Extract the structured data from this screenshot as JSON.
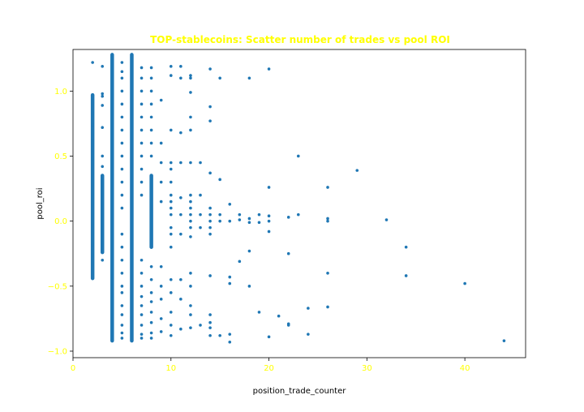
{
  "chart_data": {
    "type": "scatter",
    "title": "TOP-stablecoins: Scatter number of trades vs pool ROI",
    "xlabel": "position_trade_counter",
    "ylabel": "pool_roi",
    "xlim": [
      0,
      46.2
    ],
    "ylim": [
      -1.05,
      1.32
    ],
    "x_ticks": [
      0,
      10,
      20,
      30,
      40
    ],
    "y_ticks": [
      -1.0,
      -0.5,
      0.0,
      0.5,
      1.0
    ],
    "x_tick_labels": [
      "0",
      "10",
      "20",
      "30",
      "40"
    ],
    "y_tick_labels": [
      "−1.0",
      "−0.5",
      "0.0",
      "0.5",
      "1.0"
    ],
    "grid": false,
    "colors": {
      "points": "#1f77b4",
      "title": "#ffff00",
      "ticks": "#ffff00",
      "labels": "#000000"
    },
    "dense_bands": [
      {
        "x": 2,
        "from": -0.44,
        "to": 0.97
      },
      {
        "x": 4,
        "from": -0.92,
        "to": 1.28
      },
      {
        "x": 6,
        "from": -0.92,
        "to": 1.28
      },
      {
        "x": 3,
        "from": -0.24,
        "to": 0.35
      },
      {
        "x": 8,
        "from": -0.2,
        "to": 0.35
      }
    ],
    "points": [
      [
        2,
        1.22
      ],
      [
        2,
        0.83
      ],
      [
        2,
        0.74
      ],
      [
        2,
        0.62
      ],
      [
        2,
        0.55
      ],
      [
        2,
        0.48
      ],
      [
        2,
        -0.18
      ],
      [
        2,
        -0.26
      ],
      [
        3,
        1.19
      ],
      [
        3,
        0.98
      ],
      [
        3,
        0.96
      ],
      [
        3,
        0.89
      ],
      [
        3,
        0.72
      ],
      [
        3,
        0.5
      ],
      [
        3,
        0.42
      ],
      [
        3,
        -0.3
      ],
      [
        5,
        1.22
      ],
      [
        5,
        1.15
      ],
      [
        5,
        1.1
      ],
      [
        5,
        1.0
      ],
      [
        5,
        0.9
      ],
      [
        5,
        0.8
      ],
      [
        5,
        0.7
      ],
      [
        5,
        0.6
      ],
      [
        5,
        0.5
      ],
      [
        5,
        0.4
      ],
      [
        5,
        0.3
      ],
      [
        5,
        0.2
      ],
      [
        5,
        0.1
      ],
      [
        5,
        -0.1
      ],
      [
        5,
        -0.2
      ],
      [
        5,
        -0.3
      ],
      [
        5,
        -0.4
      ],
      [
        5,
        -0.5
      ],
      [
        5,
        -0.55
      ],
      [
        5,
        -0.65
      ],
      [
        5,
        -0.72
      ],
      [
        5,
        -0.8
      ],
      [
        5,
        -0.86
      ],
      [
        5,
        -0.9
      ],
      [
        7,
        1.18
      ],
      [
        7,
        1.1
      ],
      [
        7,
        1.0
      ],
      [
        7,
        0.9
      ],
      [
        7,
        0.8
      ],
      [
        7,
        0.7
      ],
      [
        7,
        0.6
      ],
      [
        7,
        0.5
      ],
      [
        7,
        0.4
      ],
      [
        7,
        0.3
      ],
      [
        7,
        0.2
      ],
      [
        7,
        -0.3
      ],
      [
        7,
        -0.4
      ],
      [
        7,
        -0.5
      ],
      [
        7,
        -0.58
      ],
      [
        7,
        -0.65
      ],
      [
        7,
        -0.72
      ],
      [
        7,
        -0.8
      ],
      [
        7,
        -0.87
      ],
      [
        7,
        -0.9
      ],
      [
        8,
        1.18
      ],
      [
        8,
        1.1
      ],
      [
        8,
        1.0
      ],
      [
        8,
        0.9
      ],
      [
        8,
        0.8
      ],
      [
        8,
        0.7
      ],
      [
        8,
        0.6
      ],
      [
        8,
        0.5
      ],
      [
        8,
        -0.35
      ],
      [
        8,
        -0.45
      ],
      [
        8,
        -0.55
      ],
      [
        8,
        -0.62
      ],
      [
        8,
        -0.7
      ],
      [
        8,
        -0.78
      ],
      [
        8,
        -0.86
      ],
      [
        8,
        -0.9
      ],
      [
        9,
        0.93
      ],
      [
        9,
        0.6
      ],
      [
        9,
        0.45
      ],
      [
        9,
        0.3
      ],
      [
        9,
        0.15
      ],
      [
        9,
        -0.35
      ],
      [
        9,
        -0.5
      ],
      [
        9,
        -0.6
      ],
      [
        9,
        -0.75
      ],
      [
        9,
        -0.85
      ],
      [
        10,
        1.19
      ],
      [
        10,
        1.12
      ],
      [
        10,
        0.7
      ],
      [
        10,
        0.45
      ],
      [
        10,
        0.4
      ],
      [
        10,
        0.3
      ],
      [
        10,
        0.2
      ],
      [
        10,
        0.15
      ],
      [
        10,
        0.1
      ],
      [
        10,
        0.05
      ],
      [
        10,
        -0.05
      ],
      [
        10,
        -0.1
      ],
      [
        10,
        -0.2
      ],
      [
        10,
        -0.45
      ],
      [
        10,
        -0.55
      ],
      [
        10,
        -0.7
      ],
      [
        10,
        -0.8
      ],
      [
        10,
        -0.88
      ],
      [
        11,
        1.19
      ],
      [
        11,
        1.1
      ],
      [
        11,
        0.68
      ],
      [
        11,
        0.45
      ],
      [
        11,
        0.18
      ],
      [
        11,
        0.05
      ],
      [
        11,
        -0.1
      ],
      [
        11,
        -0.45
      ],
      [
        11,
        -0.6
      ],
      [
        11,
        -0.83
      ],
      [
        12,
        1.12
      ],
      [
        12,
        1.1
      ],
      [
        12,
        0.99
      ],
      [
        12,
        0.8
      ],
      [
        12,
        0.7
      ],
      [
        12,
        0.45
      ],
      [
        12,
        0.2
      ],
      [
        12,
        0.15
      ],
      [
        12,
        0.1
      ],
      [
        12,
        0.05
      ],
      [
        12,
        0.0
      ],
      [
        12,
        -0.05
      ],
      [
        12,
        -0.12
      ],
      [
        12,
        -0.4
      ],
      [
        12,
        -0.5
      ],
      [
        12,
        -0.65
      ],
      [
        12,
        -0.72
      ],
      [
        12,
        -0.82
      ],
      [
        13,
        0.45
      ],
      [
        13,
        0.2
      ],
      [
        13,
        0.05
      ],
      [
        13,
        -0.05
      ],
      [
        13,
        -0.8
      ],
      [
        14,
        1.17
      ],
      [
        14,
        0.88
      ],
      [
        14,
        0.77
      ],
      [
        14,
        0.37
      ],
      [
        14,
        0.1
      ],
      [
        14,
        0.05
      ],
      [
        14,
        0.0
      ],
      [
        14,
        -0.05
      ],
      [
        14,
        -0.1
      ],
      [
        14,
        -0.42
      ],
      [
        14,
        -0.72
      ],
      [
        14,
        -0.78
      ],
      [
        14,
        -0.82
      ],
      [
        14,
        -0.88
      ],
      [
        15,
        1.1
      ],
      [
        15,
        0.32
      ],
      [
        15,
        0.05
      ],
      [
        15,
        0.0
      ],
      [
        15,
        -0.88
      ],
      [
        16,
        0.13
      ],
      [
        16,
        0.0
      ],
      [
        16,
        -0.43
      ],
      [
        16,
        -0.48
      ],
      [
        16,
        -0.87
      ],
      [
        16,
        -0.93
      ],
      [
        17,
        0.05
      ],
      [
        17,
        0.01
      ],
      [
        17,
        -0.31
      ],
      [
        18,
        1.1
      ],
      [
        18,
        0.02
      ],
      [
        18,
        -0.01
      ],
      [
        18,
        -0.23
      ],
      [
        18,
        -0.5
      ],
      [
        19,
        0.05
      ],
      [
        19,
        -0.01
      ],
      [
        19,
        -0.7
      ],
      [
        20,
        1.17
      ],
      [
        20,
        0.26
      ],
      [
        20,
        0.04
      ],
      [
        20,
        0.0
      ],
      [
        20,
        -0.08
      ],
      [
        20,
        -0.89
      ],
      [
        21,
        -0.73
      ],
      [
        22,
        0.03
      ],
      [
        22,
        -0.25
      ],
      [
        22,
        -0.8
      ],
      [
        22,
        -0.79
      ],
      [
        23,
        0.5
      ],
      [
        23,
        0.05
      ],
      [
        24,
        -0.67
      ],
      [
        24,
        -0.87
      ],
      [
        26,
        0.26
      ],
      [
        26,
        0.02
      ],
      [
        26,
        0.0
      ],
      [
        26,
        -0.4
      ],
      [
        26,
        -0.66
      ],
      [
        29,
        0.39
      ],
      [
        32,
        0.01
      ],
      [
        34,
        -0.2
      ],
      [
        34,
        -0.42
      ],
      [
        40,
        -0.48
      ],
      [
        44,
        -0.92
      ]
    ]
  }
}
